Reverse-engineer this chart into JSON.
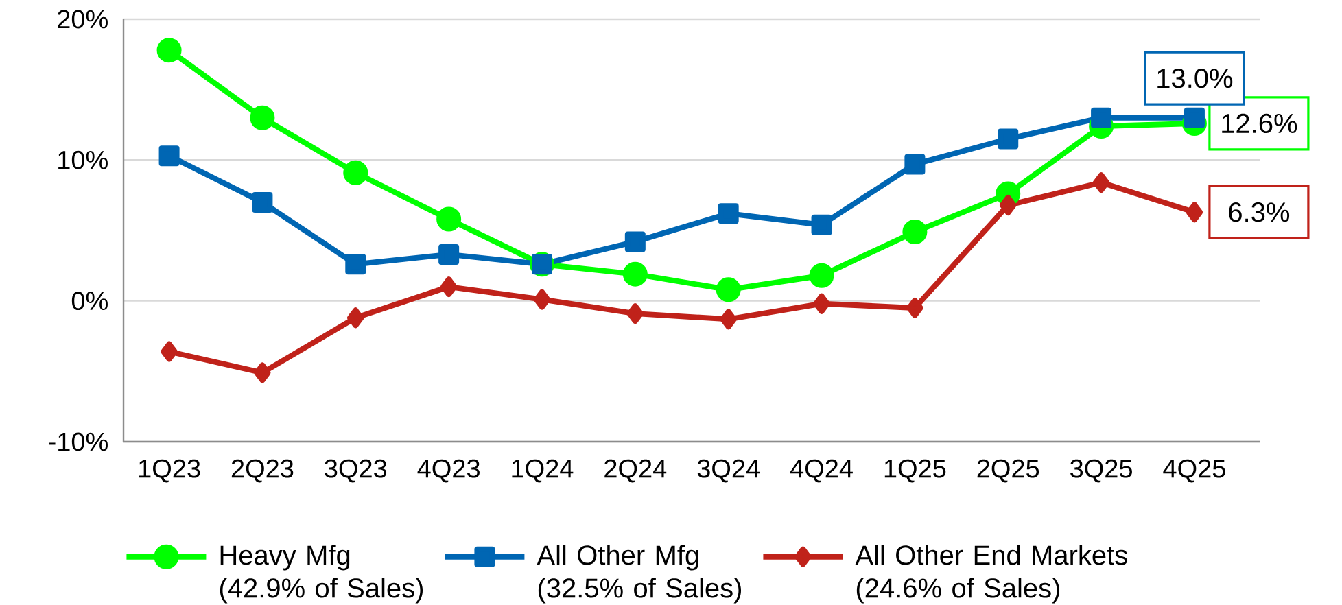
{
  "chart_data": {
    "type": "line",
    "categories": [
      "1Q23",
      "2Q23",
      "3Q23",
      "4Q23",
      "1Q24",
      "2Q24",
      "3Q24",
      "4Q24",
      "1Q25",
      "2Q25",
      "3Q25",
      "4Q25"
    ],
    "series": [
      {
        "name": "Heavy Mfg (42.9% of Sales)",
        "color": "#00ff00",
        "marker": "circle",
        "values": [
          17.8,
          13.0,
          9.1,
          5.8,
          2.6,
          1.9,
          0.8,
          1.8,
          4.9,
          7.6,
          12.4,
          12.6
        ],
        "value_labels": [
          null,
          null,
          null,
          null,
          null,
          null,
          null,
          null,
          null,
          null,
          null,
          "12.6%"
        ]
      },
      {
        "name": "All Other Mfg (32.5% of Sales)",
        "color": "#0066b3",
        "marker": "square",
        "values": [
          10.3,
          7.0,
          2.6,
          3.3,
          2.6,
          4.2,
          6.2,
          5.4,
          9.7,
          11.5,
          13.0,
          13.0
        ],
        "value_labels": [
          null,
          null,
          null,
          null,
          null,
          null,
          null,
          null,
          null,
          null,
          null,
          "13.0%"
        ]
      },
      {
        "name": "All Other End Markets (24.6% of Sales)",
        "color": "#c0221a",
        "marker": "diamond",
        "values": [
          -3.6,
          -5.1,
          -1.2,
          1.0,
          0.1,
          -0.9,
          -1.3,
          -0.2,
          -0.5,
          6.8,
          8.4,
          6.3
        ],
        "value_labels": [
          null,
          null,
          null,
          null,
          null,
          null,
          null,
          null,
          null,
          null,
          null,
          "6.3%"
        ]
      }
    ],
    "ylim": [
      -10,
      20
    ],
    "yticks": [
      {
        "value": -10,
        "label": "-10%"
      },
      {
        "value": 0,
        "label": "0%"
      },
      {
        "value": 10,
        "label": "10%"
      },
      {
        "value": 20,
        "label": "20%"
      }
    ],
    "grid": "y",
    "legend": "bottom"
  }
}
